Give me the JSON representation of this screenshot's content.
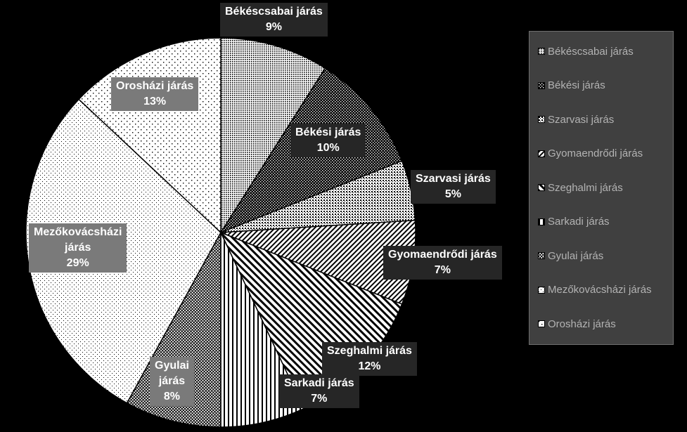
{
  "chart_data": {
    "type": "pie",
    "title": "",
    "categories": [
      "Békéscsabai járás",
      "Békési járás",
      "Szarvasi járás",
      "Gyomaendrődi járás",
      "Szeghalmi járás",
      "Sarkadi járás",
      "Gyulai járás",
      "Mezőkovácsházi járás",
      "Orosházi járás"
    ],
    "values": [
      9,
      10,
      5,
      7,
      12,
      7,
      8,
      29,
      13
    ],
    "data_labels": [
      {
        "name": "Békéscsabai járás",
        "value": "9%"
      },
      {
        "name": "Békési járás",
        "value": "10%"
      },
      {
        "name": "Szarvasi járás",
        "value": "5%"
      },
      {
        "name": "Gyomaendrődi járás",
        "value": "7%"
      },
      {
        "name": "Szeghalmi járás",
        "value": "12%"
      },
      {
        "name": "Sarkadi járás",
        "value": "7%"
      },
      {
        "name": "Gyulai",
        "name2": "járás",
        "value": "8%"
      },
      {
        "name": "Mezőkovácsházi",
        "name2": "járás",
        "value": "29%"
      },
      {
        "name": "Orosházi járás",
        "value": "13%"
      }
    ],
    "patterns": [
      "dense-dots",
      "dark-dots",
      "checker-dots",
      "diagonal-lines-up",
      "diagonal-lines-down",
      "vertical-lines",
      "fine-crosshatch",
      "sparse-dots",
      "light-dots"
    ],
    "legend": {
      "position": "right",
      "entries": [
        "Békéscsabai járás",
        "Békési járás",
        "Szarvasi járás",
        "Gyomaendrődi járás",
        "Szeghalmi járás",
        "Sarkadi járás",
        "Gyulai járás",
        "Mezőkovácsházi járás",
        "Orosházi járás"
      ]
    },
    "colors": {
      "background": "#000000",
      "slice_base": "#ffffff",
      "pattern": "#000000",
      "label_dark_bg": "#262626",
      "label_gray_bg": "#7a7a7a",
      "legend_bg": "#404040",
      "legend_text": "#b3b3b3"
    }
  }
}
